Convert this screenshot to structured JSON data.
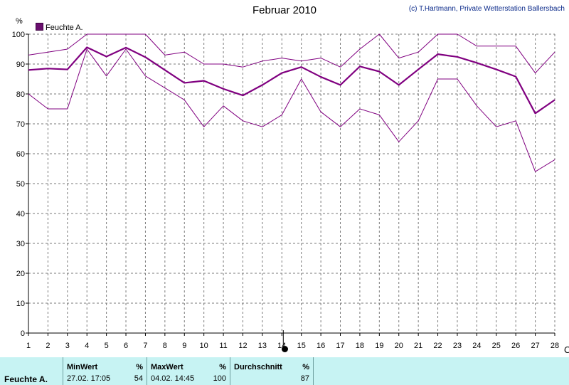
{
  "header": {
    "title": "Februar 2010",
    "copyright": "(c) T.Hartmann, Private Wetterstation Ballersbach"
  },
  "colors": {
    "line": "#800080",
    "grid": "#7a7a7a",
    "panel": "#c7f3f3"
  },
  "chart_data": {
    "type": "line",
    "title": "Februar 2010",
    "ylabel": "%",
    "xlabel": "",
    "x": [
      1,
      2,
      3,
      4,
      5,
      6,
      7,
      8,
      9,
      10,
      11,
      12,
      13,
      14,
      15,
      16,
      17,
      18,
      19,
      20,
      21,
      22,
      23,
      24,
      25,
      26,
      27,
      28
    ],
    "ylim": [
      0,
      100
    ],
    "yticks": [
      0,
      10,
      20,
      30,
      40,
      50,
      60,
      70,
      80,
      90,
      100
    ],
    "grid": true,
    "legend_position": "top-left",
    "legend": [
      "Feuchte A."
    ],
    "series": [
      {
        "name": "Feuchte A.",
        "role": "average",
        "values": [
          88,
          88.5,
          88.2,
          95.6,
          92.5,
          95.5,
          92.3,
          88,
          83.7,
          84.4,
          81.7,
          79.5,
          83,
          87,
          89,
          85.7,
          83,
          89.2,
          87.5,
          83,
          88.2,
          93.3,
          92.4,
          90.4,
          88.2,
          85.8,
          73.5,
          78
        ]
      },
      {
        "role": "maximum",
        "values": [
          93,
          94,
          95,
          100,
          100,
          100,
          100,
          93,
          94,
          90,
          90,
          89,
          91,
          92,
          91,
          92,
          89,
          95,
          100,
          92,
          94,
          100,
          100,
          96,
          96,
          96,
          87,
          94
        ]
      },
      {
        "role": "minimum",
        "values": [
          80,
          75,
          75,
          95,
          86,
          95,
          86,
          82,
          78,
          69,
          76,
          71,
          69,
          73,
          85,
          74,
          69,
          75,
          73,
          64,
          71,
          85,
          85,
          76,
          69,
          71,
          54,
          58
        ]
      }
    ]
  },
  "stats": {
    "row_label": "Feuchte A.",
    "min": {
      "header": "MinWert",
      "unit": "%",
      "time": "27.02.  17:05",
      "value": "54"
    },
    "max": {
      "header": "MaxWert",
      "unit": "%",
      "time": "04.02.  14:45",
      "value": "100"
    },
    "avg": {
      "header": "Durchschnitt",
      "unit": "%",
      "value": "87"
    }
  },
  "slider": {
    "marker_day": 14
  }
}
